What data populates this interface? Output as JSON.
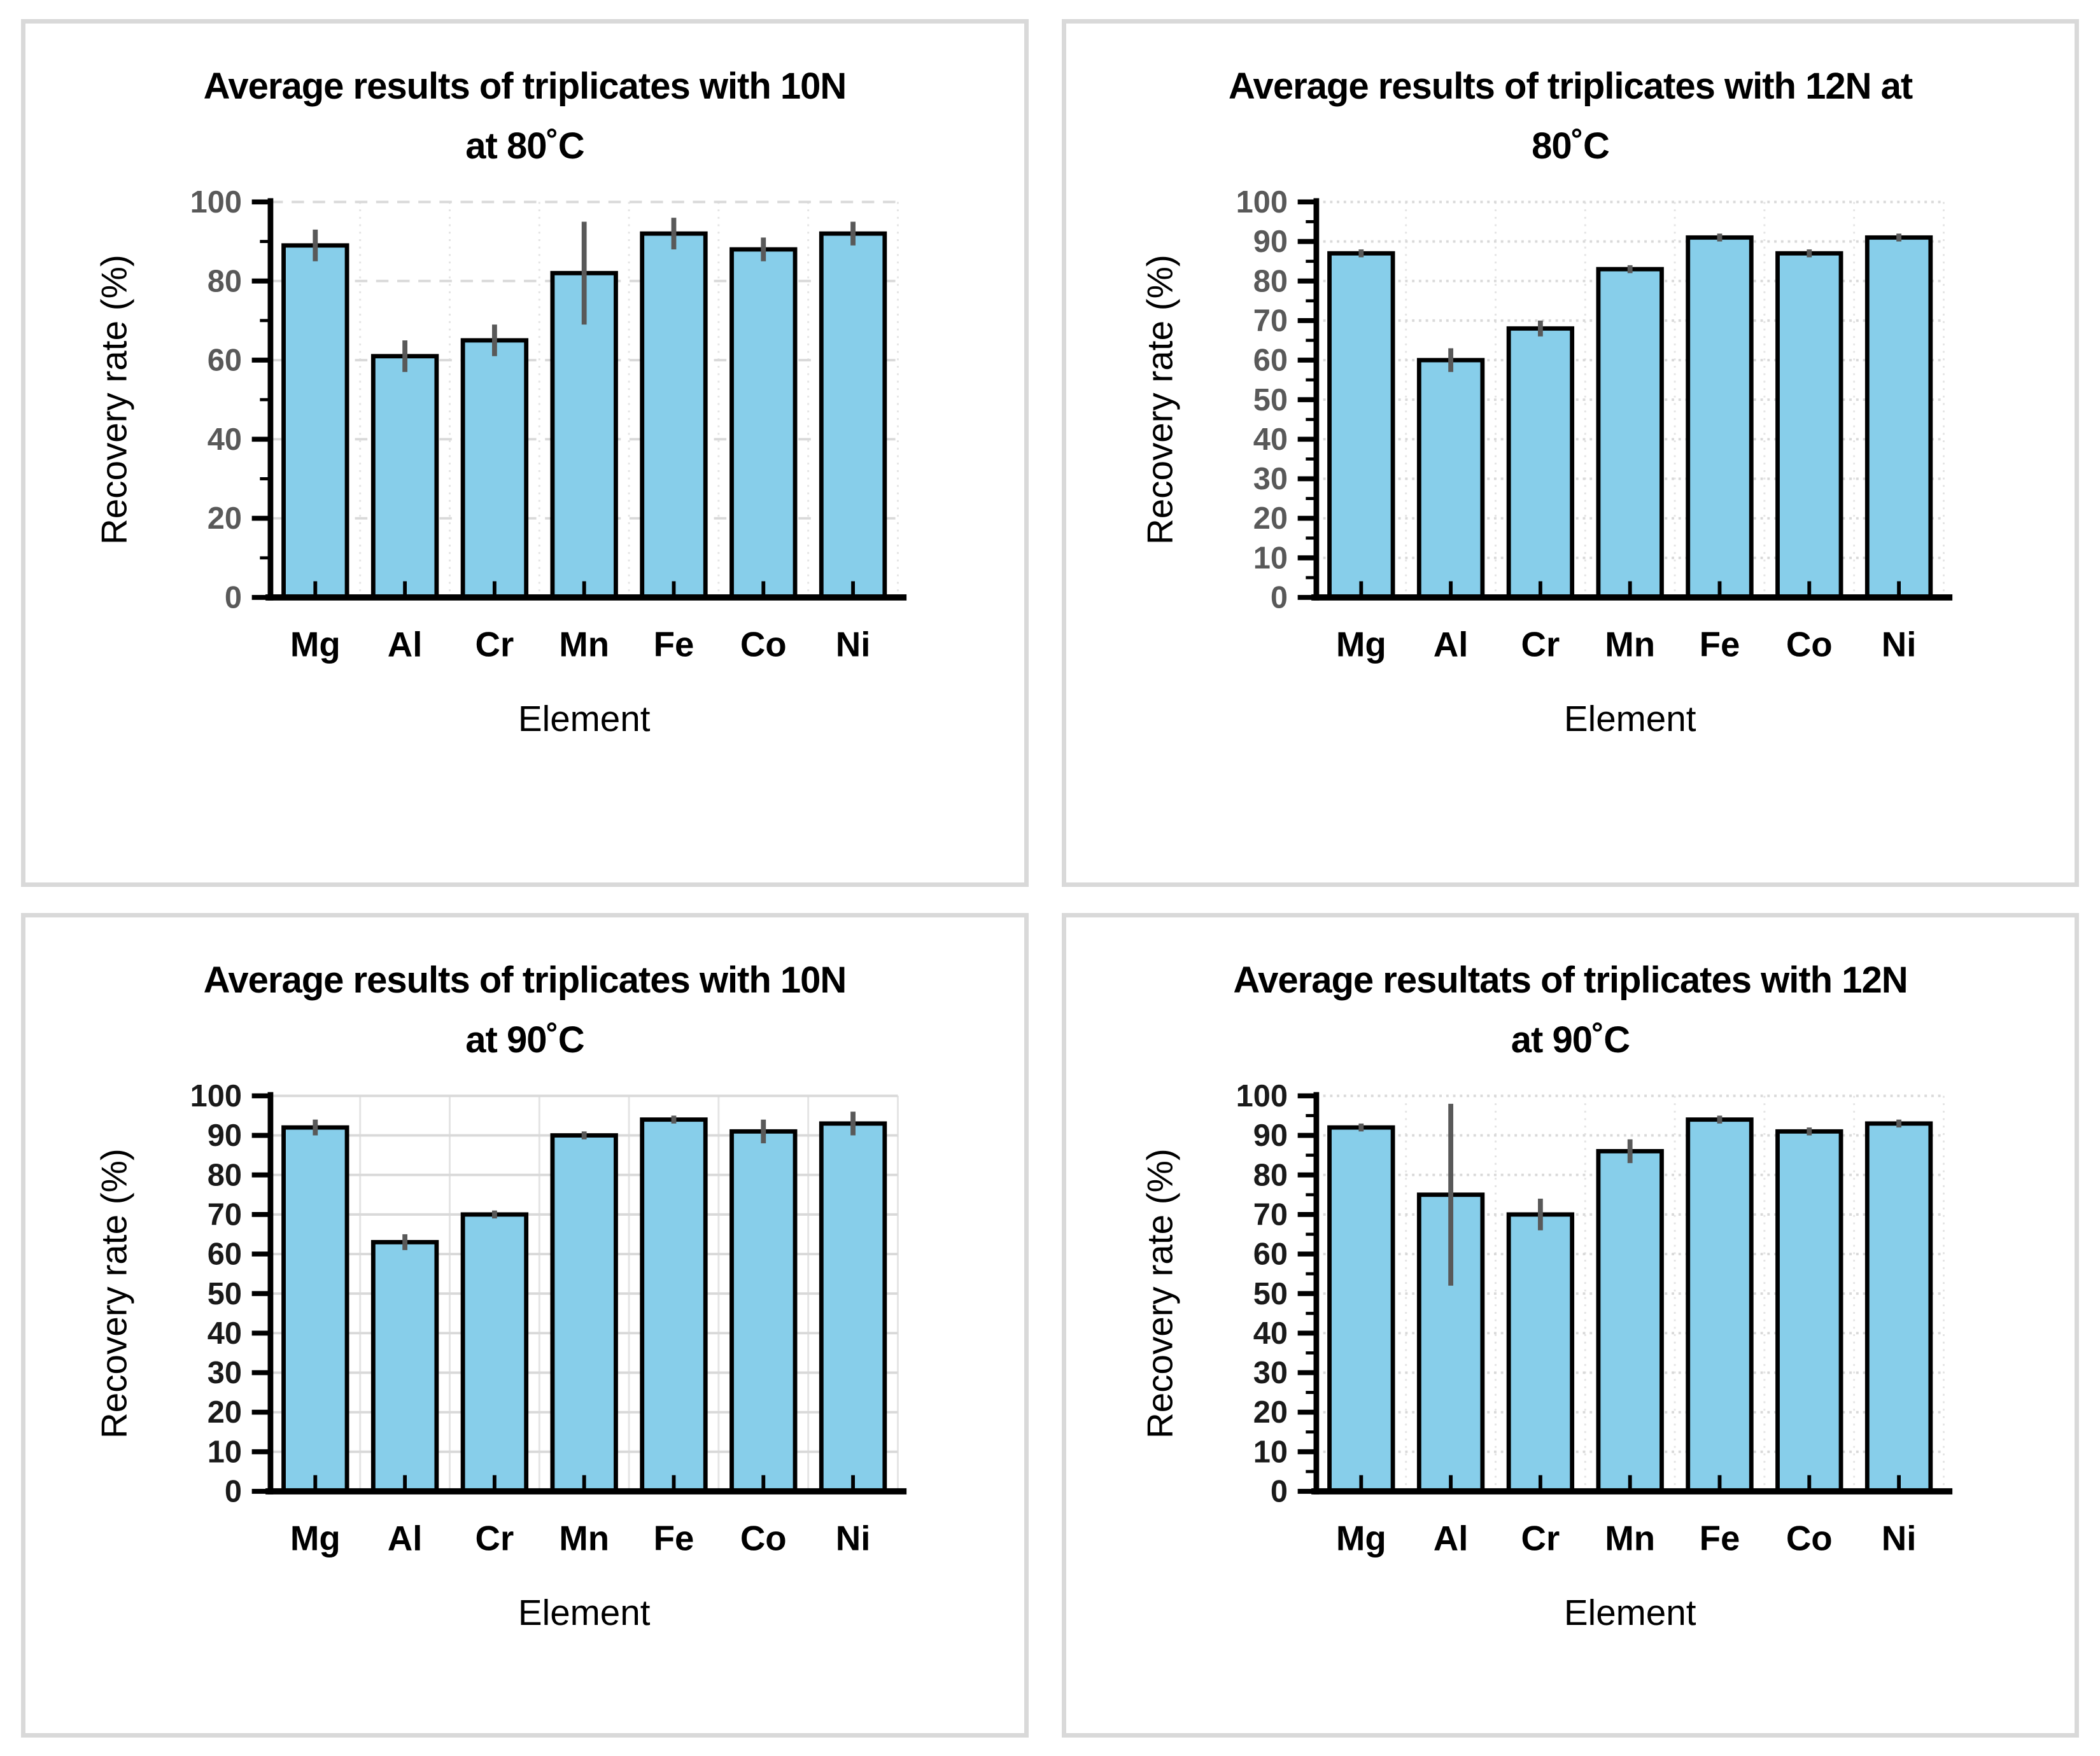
{
  "colors": {
    "bar_fill": "#87CEEA",
    "bar_stroke": "#000000",
    "error_bar": "#595959",
    "axis": "#000000",
    "grid_h": "#D9D9D9",
    "grid_v": "#E4E4E4",
    "tick_label_gray": "#595959",
    "tick_label_black": "#1a1a1a",
    "text": "#000000",
    "panel_border": "#D9D9D9"
  },
  "chart_data": [
    {
      "type": "bar",
      "title_lines": [
        "Average results of triplicates with 10N",
        "at 80˚C"
      ],
      "xlabel": "Element",
      "ylabel": "Recovery rate (%)",
      "categories": [
        "Mg",
        "Al",
        "Cr",
        "Mn",
        "Fe",
        "Co",
        "Ni"
      ],
      "values": [
        89,
        61,
        65,
        82,
        92,
        88,
        92
      ],
      "errors": [
        4,
        4,
        4,
        13,
        4,
        3,
        3
      ],
      "ylim": [
        0,
        100
      ],
      "ytick_step": 20,
      "minor_step": 10,
      "grid_style": "dashed",
      "tick_label_color": "gray",
      "legend": "none",
      "grid": "on"
    },
    {
      "type": "bar",
      "title_lines": [
        "Average results of triplicates with 12N at",
        "80˚C"
      ],
      "xlabel": "Element",
      "ylabel": "Recovery rate (%)",
      "categories": [
        "Mg",
        "Al",
        "Cr",
        "Mn",
        "Fe",
        "Co",
        "Ni"
      ],
      "values": [
        87,
        60,
        68,
        83,
        91,
        87,
        91
      ],
      "errors": [
        1,
        3,
        2,
        1,
        1,
        1,
        1
      ],
      "ylim": [
        0,
        100
      ],
      "ytick_step": 10,
      "minor_step": 5,
      "grid_style": "dotted",
      "tick_label_color": "gray",
      "legend": "none",
      "grid": "on"
    },
    {
      "type": "bar",
      "title_lines": [
        "Average results of triplicates with 10N",
        "at 90˚C"
      ],
      "xlabel": "Element",
      "ylabel": "Recovery rate (%)",
      "categories": [
        "Mg",
        "Al",
        "Cr",
        "Mn",
        "Fe",
        "Co",
        "Ni"
      ],
      "values": [
        92,
        63,
        70,
        90,
        94,
        91,
        93
      ],
      "errors": [
        2,
        2,
        1,
        1,
        1,
        3,
        3
      ],
      "ylim": [
        0,
        100
      ],
      "ytick_step": 10,
      "minor_step": 0,
      "grid_style": "solid",
      "tick_label_color": "black",
      "legend": "none",
      "grid": "on"
    },
    {
      "type": "bar",
      "title_lines": [
        "Average resultats of triplicates with 12N",
        "at 90˚C"
      ],
      "xlabel": "Element",
      "ylabel": "Recovery rate (%)",
      "categories": [
        "Mg",
        "Al",
        "Cr",
        "Mn",
        "Fe",
        "Co",
        "Ni"
      ],
      "values": [
        92,
        75,
        70,
        86,
        94,
        91,
        93
      ],
      "errors": [
        1,
        23,
        4,
        3,
        1,
        1,
        1
      ],
      "ylim": [
        0,
        100
      ],
      "ytick_step": 10,
      "minor_step": 5,
      "grid_style": "dotted",
      "tick_label_color": "black",
      "legend": "none",
      "grid": "on"
    }
  ]
}
